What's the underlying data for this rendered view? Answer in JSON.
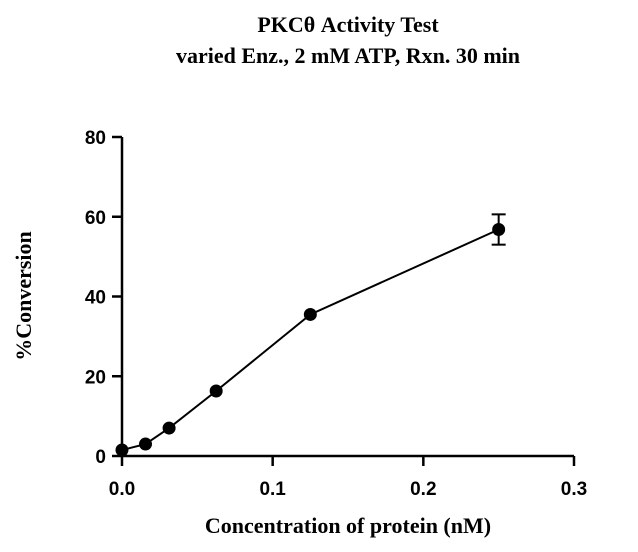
{
  "chart_data": {
    "type": "line",
    "title": "PKCθ Activity Test",
    "subtitle": "varied Enz., 2 mM ATP, Rxn. 30 min",
    "xlabel": "Concentration of protein (nM)",
    "ylabel": "%Conversion",
    "xlim": [
      0,
      0.3
    ],
    "ylim": [
      0,
      80
    ],
    "x_ticks": [
      0.0,
      0.1,
      0.2,
      0.3
    ],
    "x_tick_labels": [
      "0.0",
      "0.1",
      "0.2",
      "0.3"
    ],
    "y_ticks": [
      0,
      20,
      40,
      60,
      80
    ],
    "y_tick_labels": [
      "0",
      "20",
      "40",
      "60",
      "80"
    ],
    "grid": false,
    "legend": "none",
    "series": [
      {
        "x": [
          0.0,
          0.0156,
          0.03125,
          0.0625,
          0.125,
          0.25
        ],
        "y": [
          1.5,
          3.0,
          7.0,
          16.3,
          35.5,
          56.8
        ],
        "error": [
          0,
          0,
          0,
          0,
          0,
          3.8
        ],
        "color": "#000000",
        "marker": "circle"
      }
    ]
  }
}
